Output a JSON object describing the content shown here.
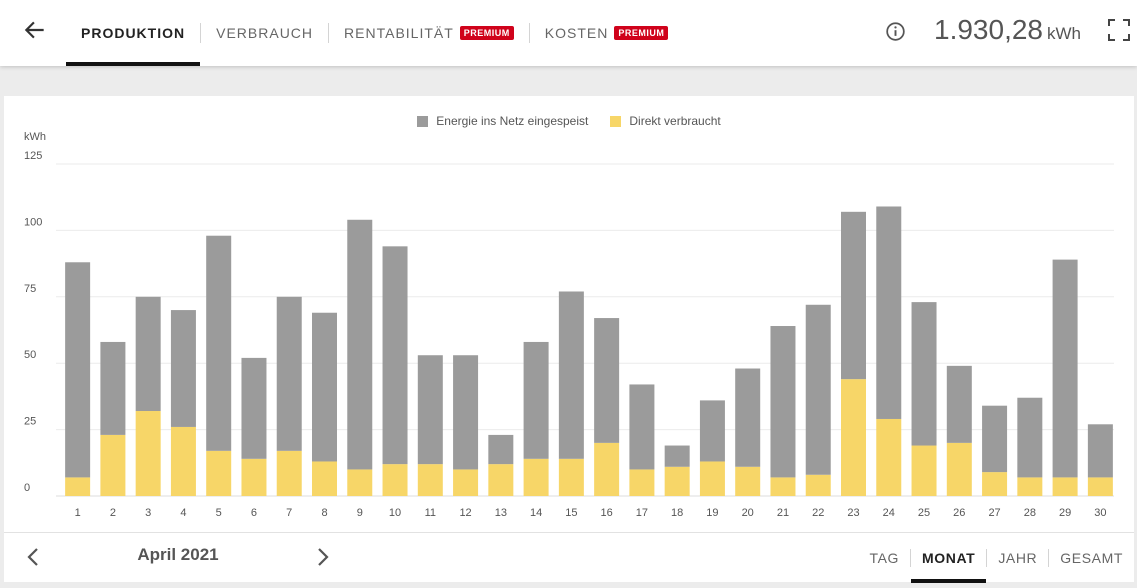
{
  "header": {
    "tabs": [
      {
        "label": "PRODUKTION",
        "active": true,
        "premium": false
      },
      {
        "label": "VERBRAUCH",
        "active": false,
        "premium": false
      },
      {
        "label": "RENTABILITÄT",
        "active": false,
        "premium": true
      },
      {
        "label": "KOSTEN",
        "active": false,
        "premium": true
      }
    ],
    "premium_badge": "PREMIUM",
    "total_value": "1.930,28",
    "total_unit": "kWh"
  },
  "chart_data": {
    "type": "bar",
    "stacked": true,
    "ylabel": "kWh",
    "ylim": [
      0,
      125
    ],
    "yticks": [
      0,
      25,
      50,
      75,
      100,
      125
    ],
    "grid": true,
    "legend_position": "top-center",
    "categories": [
      "1",
      "2",
      "3",
      "4",
      "5",
      "6",
      "7",
      "8",
      "9",
      "10",
      "11",
      "12",
      "13",
      "14",
      "15",
      "16",
      "17",
      "18",
      "19",
      "20",
      "21",
      "22",
      "23",
      "24",
      "25",
      "26",
      "27",
      "28",
      "29",
      "30"
    ],
    "series": [
      {
        "name": "Energie ins Netz eingespeist",
        "color": "#9b9b9b",
        "values": [
          81,
          35,
          43,
          44,
          81,
          38,
          58,
          56,
          94,
          82,
          41,
          43,
          11,
          44,
          63,
          47,
          32,
          8,
          23,
          37,
          57,
          64,
          63,
          80,
          54,
          29,
          25,
          30,
          82,
          20
        ]
      },
      {
        "name": "Direkt verbraucht",
        "color": "#f7d668",
        "values": [
          7,
          23,
          32,
          26,
          17,
          14,
          17,
          13,
          10,
          12,
          12,
          10,
          12,
          14,
          14,
          20,
          10,
          11,
          13,
          11,
          7,
          8,
          44,
          29,
          19,
          20,
          9,
          7,
          7,
          7
        ]
      }
    ]
  },
  "footer": {
    "period": "April 2021",
    "ranges": [
      {
        "label": "TAG",
        "active": false
      },
      {
        "label": "MONAT",
        "active": true
      },
      {
        "label": "JAHR",
        "active": false
      },
      {
        "label": "GESAMT",
        "active": false
      }
    ]
  }
}
